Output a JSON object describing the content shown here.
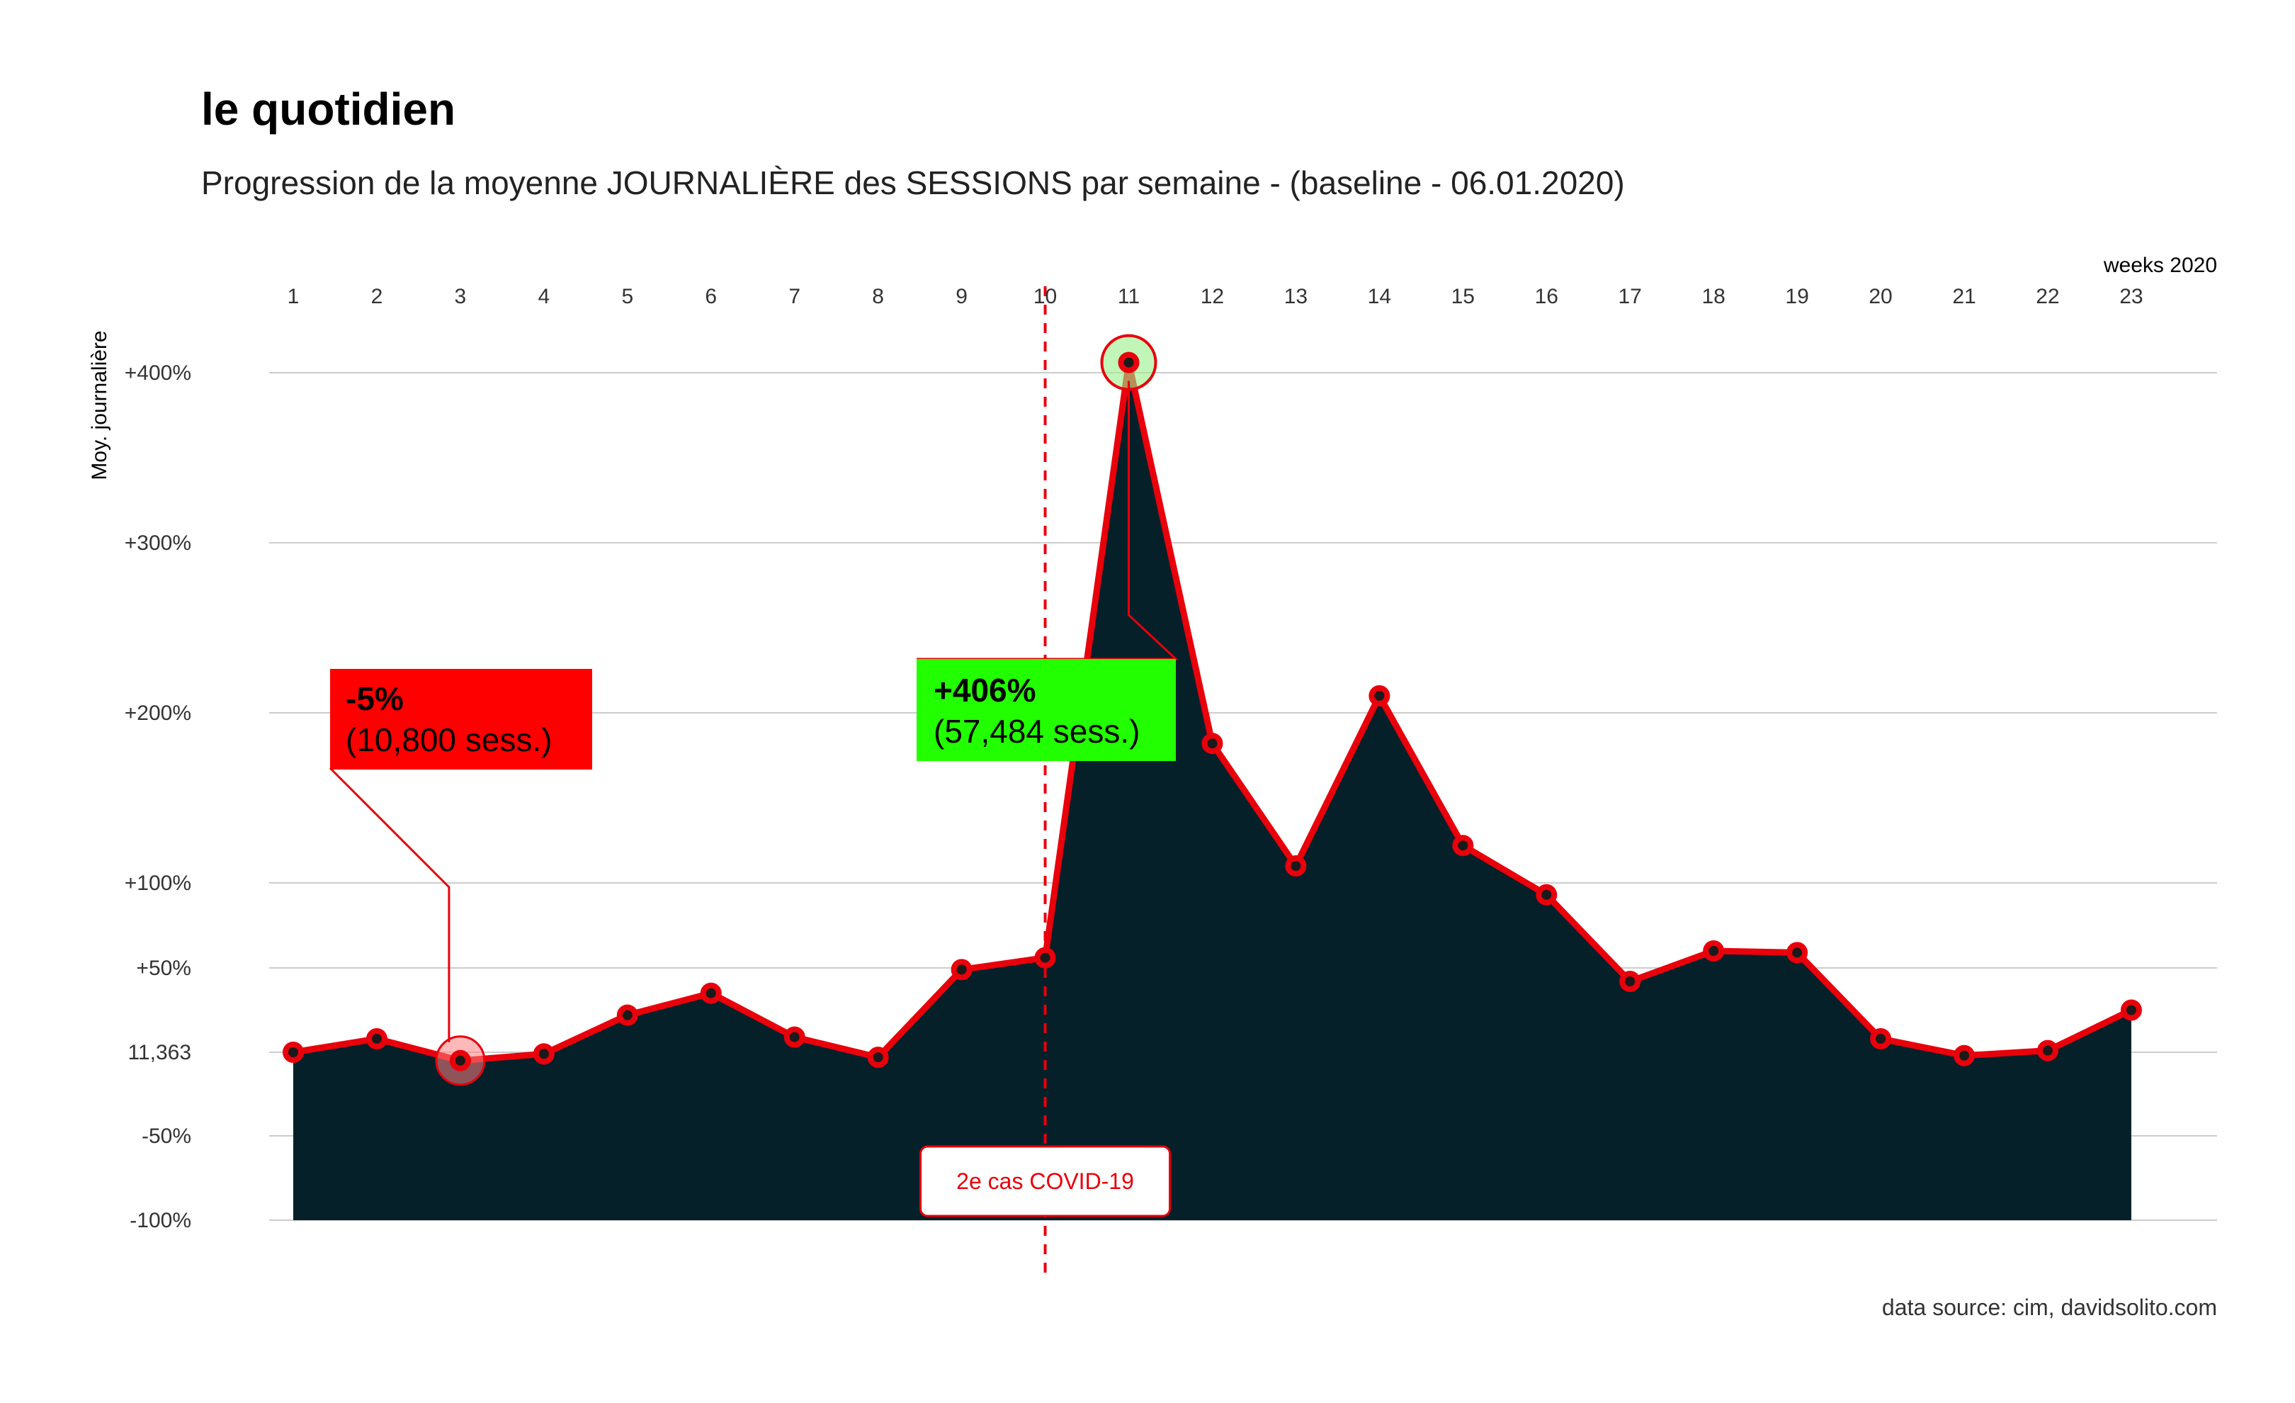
{
  "chart_data": {
    "type": "area",
    "title": "le quotidien",
    "subtitle": "Progression de la moyenne JOURNALIÈRE des SESSIONS par semaine - (baseline - 06.01.2020)",
    "xlabel": "weeks 2020",
    "ylabel": "Moy. journalière",
    "caption": "data source: cim, davidsolito.com",
    "x": [
      1,
      2,
      3,
      4,
      5,
      6,
      7,
      8,
      9,
      10,
      11,
      12,
      13,
      14,
      15,
      16,
      17,
      18,
      19,
      20,
      21,
      22,
      23
    ],
    "values": [
      0,
      8,
      -5,
      -1,
      22,
      35,
      9,
      -3,
      49,
      56,
      406,
      182,
      110,
      210,
      122,
      93,
      42,
      60,
      59,
      8,
      -2,
      1,
      25
    ],
    "value_unit": "% vs baseline (11,363 sessions)",
    "ylim": [
      -100,
      450
    ],
    "yticks": [
      -100,
      -50,
      0,
      50,
      100,
      200,
      300,
      400
    ],
    "ytick_labels": [
      "-100%",
      "-50%",
      "11,363",
      "+50%",
      "+100%",
      "+200%",
      "+300%",
      "+400%"
    ],
    "xtick_labels": [
      "1",
      "2",
      "3",
      "4",
      "5",
      "6",
      "7",
      "8",
      "9",
      "10",
      "11",
      "12",
      "13",
      "14",
      "15",
      "16",
      "17",
      "18",
      "19",
      "20",
      "21",
      "22",
      "23"
    ],
    "x_axis_position": "top",
    "grid": true,
    "colors": {
      "area_fill": "#06202a",
      "line": "#e8000b",
      "point_fill": "#1a1a1a",
      "min_highlight": "#ff8080",
      "max_highlight": "#99ee88",
      "min_box": "#ff0000",
      "max_box": "#22ff00",
      "covid_line": "#e8000b"
    },
    "annotations": {
      "min": {
        "week": 3,
        "value": -5,
        "pct_label": "-5%",
        "sessions_label": "(10,800 sess.)"
      },
      "max": {
        "week": 11,
        "value": 406,
        "pct_label": "+406%",
        "sessions_label": "(57,484 sess.)"
      },
      "event": {
        "week": 10,
        "label": "2e cas COVID-19"
      }
    }
  }
}
